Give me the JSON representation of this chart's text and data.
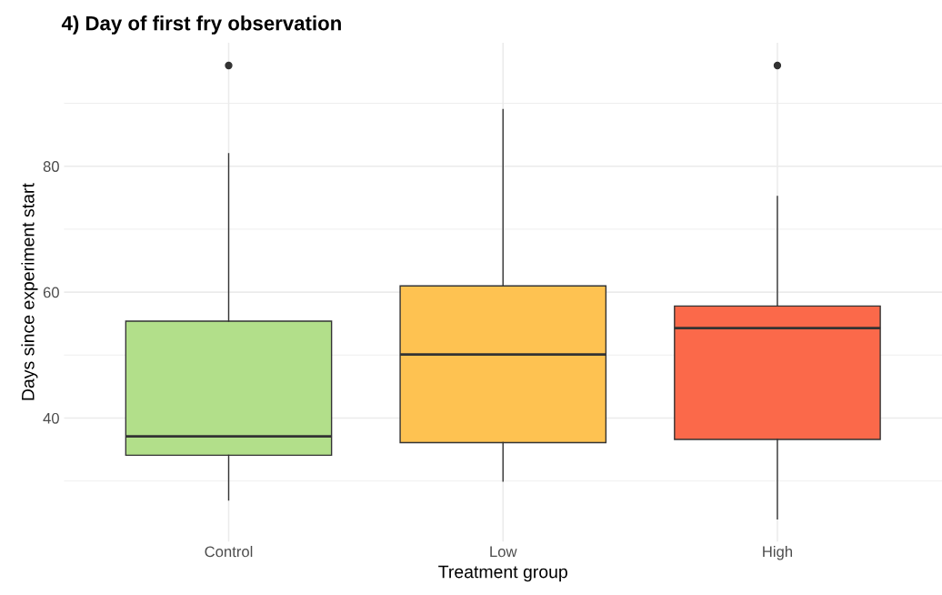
{
  "chart_data": {
    "type": "box",
    "title": "4) Day of first fry observation",
    "xlabel": "Treatment group",
    "ylabel": "Days since experiment start",
    "categories": [
      "Control",
      "Low",
      "High"
    ],
    "colors": [
      "#b2df8a",
      "#fec251",
      "#fb694a"
    ],
    "boxes": [
      {
        "low": 27,
        "q1": 34.1,
        "median": 37.1,
        "q3": 55.4,
        "high": 82,
        "outliers": [
          96
        ]
      },
      {
        "low": 30,
        "q1": 36.1,
        "median": 50.1,
        "q3": 61,
        "high": 89
      },
      {
        "low": 24,
        "q1": 36.6,
        "median": 54.3,
        "q3": 57.8,
        "high": 75.2,
        "outliers": [
          96
        ]
      }
    ],
    "ylim": [
      20.4,
      99.6
    ],
    "yticks": [
      40,
      60,
      80
    ],
    "grid": true
  }
}
